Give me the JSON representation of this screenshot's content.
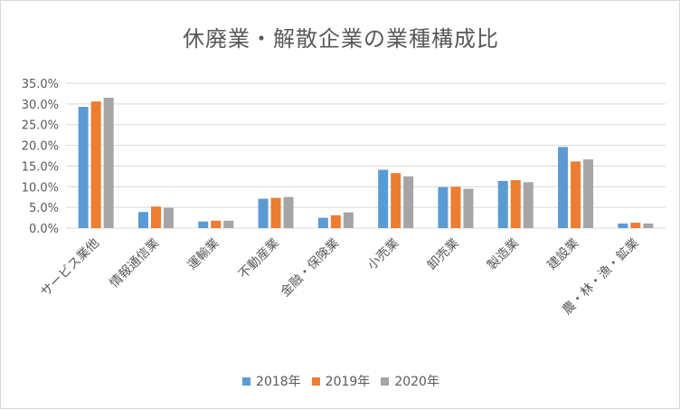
{
  "chart_data": {
    "type": "bar",
    "title": "休廃業・解散企業の業種構成比",
    "categories": [
      "サービス業他",
      "情報通信業",
      "運輸業",
      "不動産業",
      "金融・保険業",
      "小売業",
      "卸売業",
      "製造業",
      "建設業",
      "農・林・漁・鉱業"
    ],
    "series": [
      {
        "name": "2018年",
        "color": "#5b9bd5",
        "values": [
          29.3,
          3.9,
          1.6,
          7.1,
          2.5,
          14.1,
          9.9,
          11.4,
          19.6,
          1.1
        ]
      },
      {
        "name": "2019年",
        "color": "#ed7d31",
        "values": [
          30.6,
          5.2,
          1.8,
          7.3,
          3.1,
          13.3,
          10.0,
          11.6,
          16.1,
          1.3
        ]
      },
      {
        "name": "2020年",
        "color": "#a5a5a5",
        "values": [
          31.5,
          4.9,
          1.8,
          7.5,
          3.8,
          12.5,
          9.5,
          11.1,
          16.6,
          1.1
        ]
      }
    ],
    "ylim": [
      0,
      35
    ],
    "yticks": [
      "0.0%",
      "5.0%",
      "10.0%",
      "15.0%",
      "20.0%",
      "25.0%",
      "30.0%",
      "35.0%"
    ],
    "grid": true,
    "legend_position": "bottom"
  }
}
